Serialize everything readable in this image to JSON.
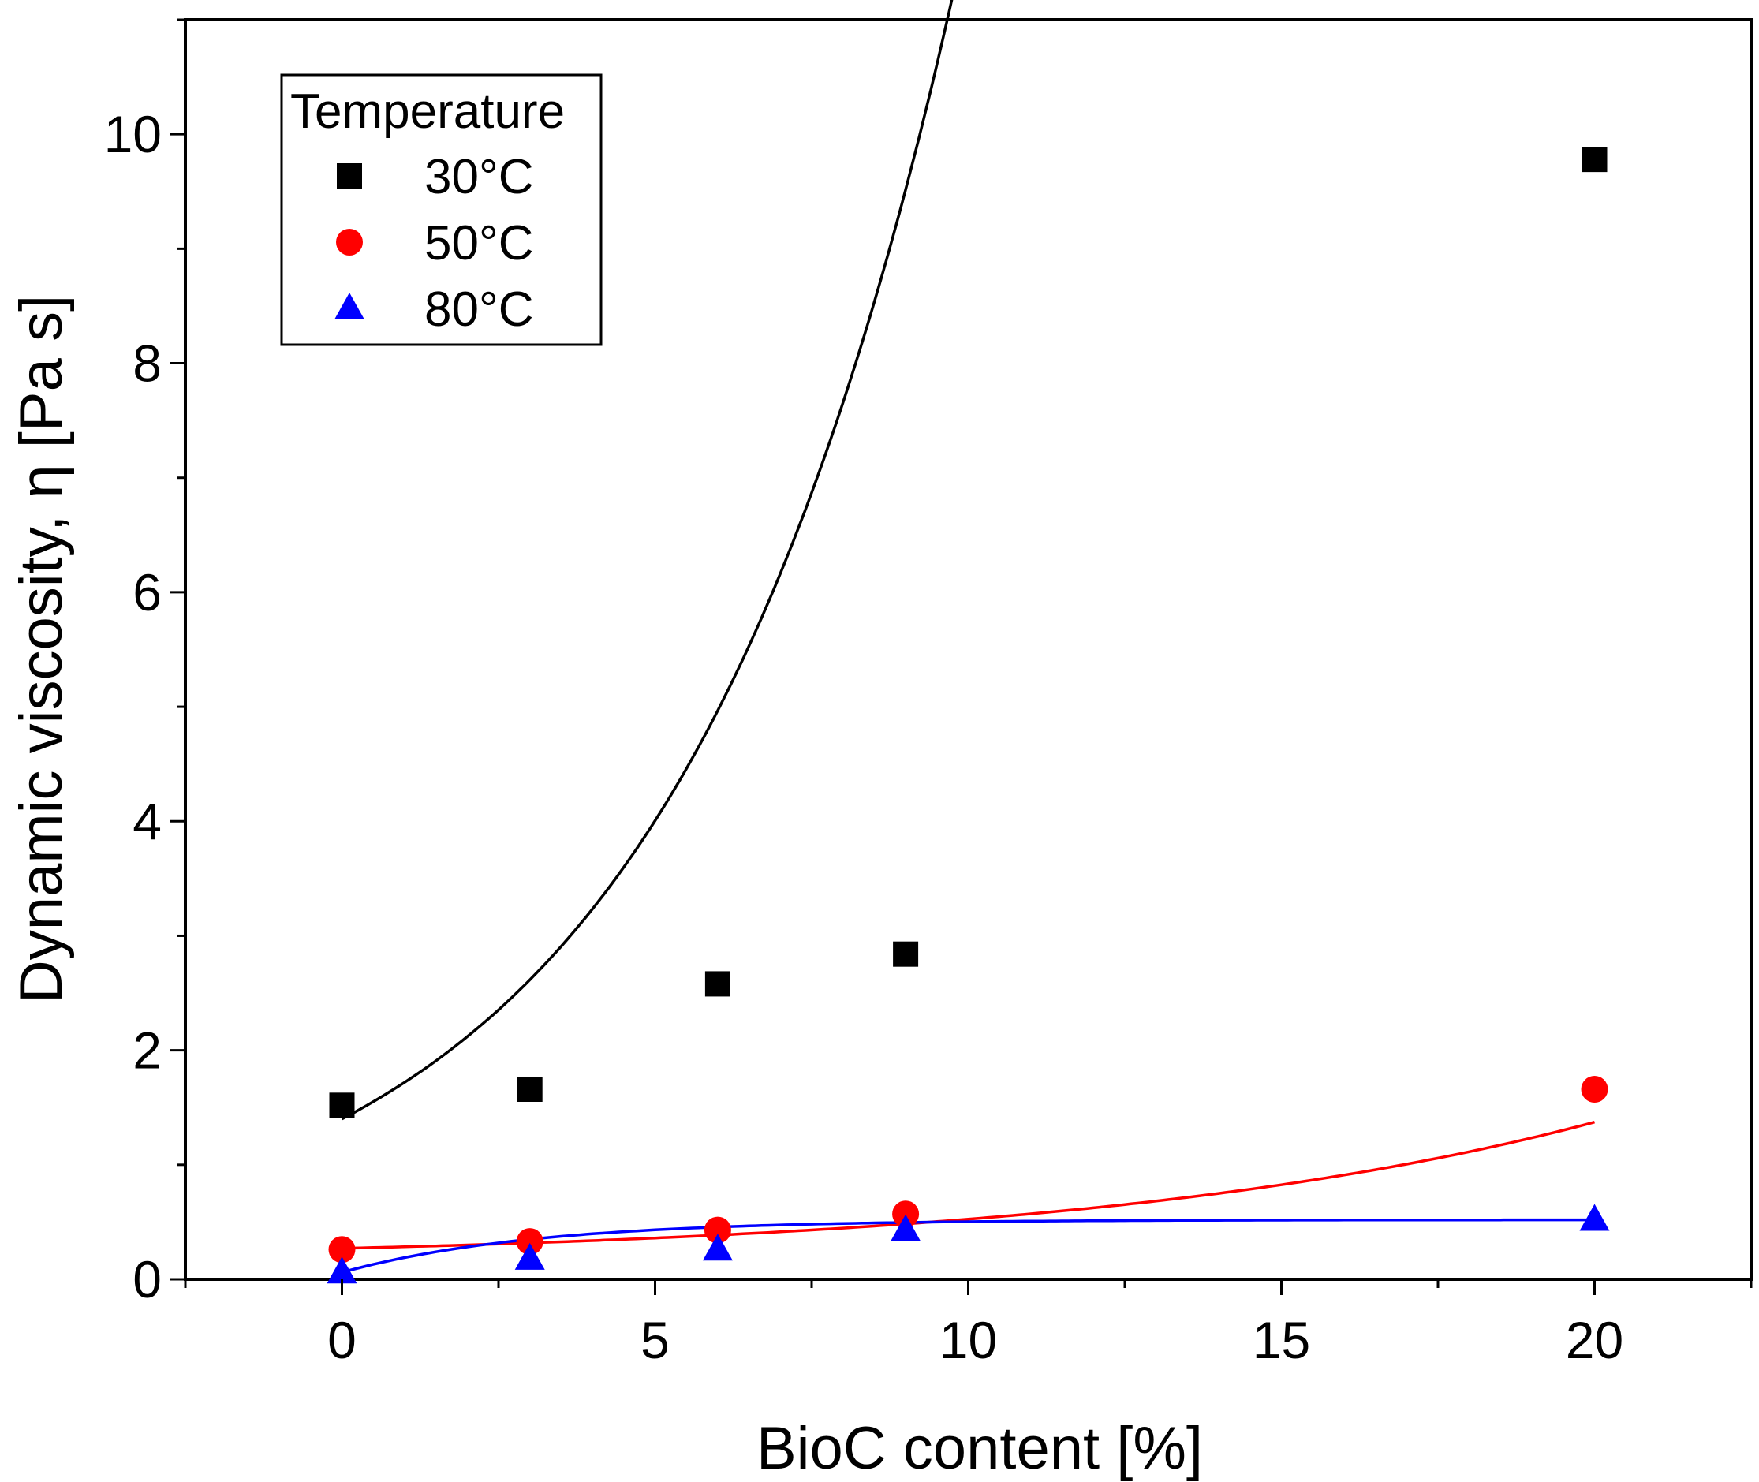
{
  "chart_data": {
    "type": "scatter",
    "title": "",
    "xlabel": "BioC content [%]",
    "ylabel": "Dynamic viscosity, η [Pa s]",
    "xlim": [
      -2.5,
      22.5
    ],
    "ylim": [
      0,
      11
    ],
    "xticks": [
      0,
      5,
      10,
      15,
      20
    ],
    "xtick_labels": [
      "0",
      "5",
      "10",
      "15",
      "20"
    ],
    "yticks": [
      0,
      2,
      4,
      6,
      8,
      10
    ],
    "ytick_labels": [
      "0",
      "2",
      "4",
      "6",
      "8",
      "10"
    ],
    "grid": false,
    "legend": {
      "title": "Temperature",
      "placement": "top-left"
    },
    "series": [
      {
        "name": "30°C",
        "marker": "square",
        "color": "#000000",
        "x": [
          0,
          3,
          6,
          9,
          20
        ],
        "y": [
          1.52,
          1.66,
          2.58,
          2.84,
          9.78
        ],
        "fit": {
          "model": "exponential",
          "a": 1.3,
          "b": 0.22,
          "c": 0.1
        }
      },
      {
        "name": "50°C",
        "marker": "circle",
        "color": "#ff0000",
        "x": [
          0,
          3,
          6,
          9,
          20
        ],
        "y": [
          0.26,
          0.33,
          0.43,
          0.57,
          1.66
        ],
        "fit": {
          "model": "exponential",
          "a": 0.11,
          "b": 0.12,
          "c": 0.16
        }
      },
      {
        "name": "80°C",
        "marker": "triangle",
        "color": "#0000ff",
        "x": [
          0,
          3,
          6,
          9,
          20
        ],
        "y": [
          0.06,
          0.18,
          0.26,
          0.43,
          0.52
        ],
        "fit": {
          "model": "saturation",
          "ymax": 0.52,
          "y0": 0.06,
          "k": 0.33
        }
      }
    ]
  }
}
